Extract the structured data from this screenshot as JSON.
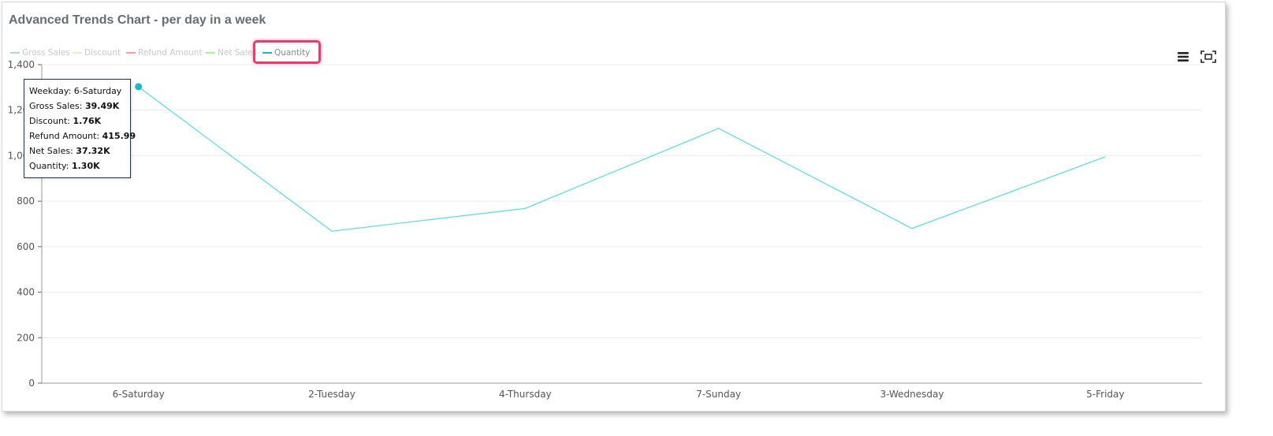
{
  "title": "Advanced Trends Chart - per day in a week",
  "legend": [
    {
      "label": "Gross Sales",
      "color": "#7cb5ec"
    },
    {
      "label": "Discount",
      "color": "#f7d794"
    },
    {
      "label": "Refund Amount",
      "color": "#f45b5b"
    },
    {
      "label": "Net Sales",
      "color": "#90ed7d"
    },
    {
      "label": "Quantity",
      "color": "#1ab7d1"
    }
  ],
  "toolbar": {
    "menu_icon": "hamburger-menu-icon",
    "fullscreen_icon": "fullscreen-icon"
  },
  "tooltip": {
    "weekday_label": "Weekday:",
    "weekday_value": "6-Saturday",
    "gross_label": "Gross Sales:",
    "gross_value": "39.49K",
    "discount_label": "Discount:",
    "discount_value": "1.76K",
    "refund_label": "Refund Amount:",
    "refund_value": "415.99",
    "net_label": "Net Sales:",
    "net_value": "37.32K",
    "quantity_label": "Quantity:",
    "quantity_value": "1.30K"
  },
  "chart_data": {
    "type": "line",
    "title": "Advanced Trends Chart - per day in a week",
    "categories": [
      "6-Saturday",
      "2-Tuesday",
      "4-Thursday",
      "7-Sunday",
      "3-Wednesday",
      "5-Friday"
    ],
    "series": [
      {
        "name": "Quantity",
        "values": [
          1303,
          668,
          768,
          1120,
          680,
          995
        ],
        "color": "#1ab7d1"
      }
    ],
    "ylim": [
      0,
      1400
    ],
    "yticks": [
      0,
      200,
      400,
      600,
      800,
      1000,
      1200,
      1400
    ],
    "ytick_labels": [
      "0",
      "200",
      "400",
      "600",
      "800",
      "1,000",
      "1,200",
      "1,400"
    ],
    "grid": true,
    "legend_position": "top-left"
  }
}
